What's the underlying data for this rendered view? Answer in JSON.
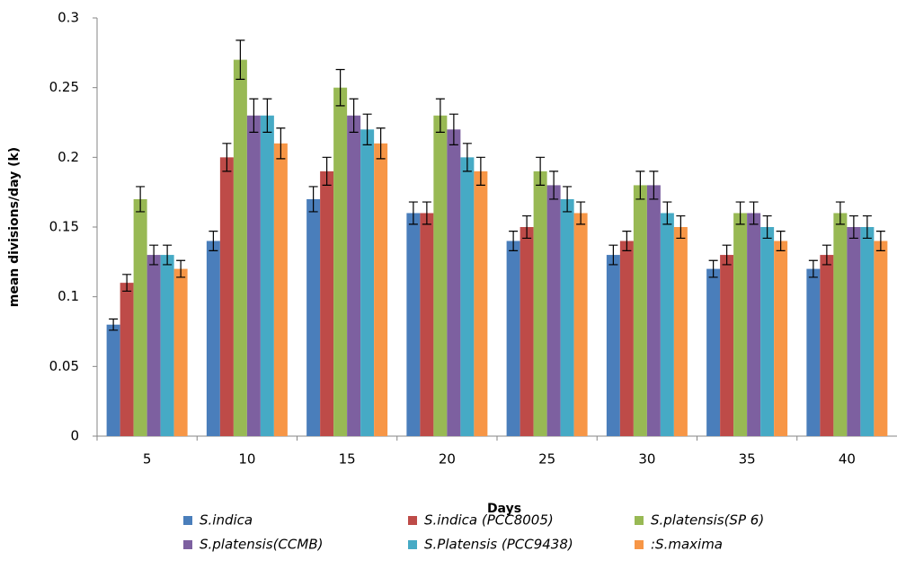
{
  "chart_data": {
    "type": "bar",
    "x_label": "Days",
    "y_label": "mean divisions/day  (k)",
    "categories": [
      "5",
      "10",
      "15",
      "20",
      "25",
      "30",
      "35",
      "40"
    ],
    "ylim": [
      0,
      0.3
    ],
    "yticks": [
      0,
      0.05,
      0.1,
      0.15,
      0.2,
      0.25,
      0.3
    ],
    "grid": false,
    "legend": "bottom",
    "series": [
      {
        "name": "S.indica",
        "color": "#4a7ebb",
        "values": [
          0.08,
          0.14,
          0.17,
          0.16,
          0.14,
          0.13,
          0.12,
          0.12
        ],
        "errors": [
          0.004,
          0.007,
          0.009,
          0.008,
          0.007,
          0.007,
          0.006,
          0.006
        ]
      },
      {
        "name": "S.indica  (PCC8005)",
        "color": "#be4b48",
        "values": [
          0.11,
          0.2,
          0.19,
          0.16,
          0.15,
          0.14,
          0.13,
          0.13
        ],
        "errors": [
          0.006,
          0.01,
          0.01,
          0.008,
          0.008,
          0.007,
          0.007,
          0.007
        ]
      },
      {
        "name": "S.platensis(SP 6)",
        "color": "#98b954",
        "values": [
          0.17,
          0.27,
          0.25,
          0.23,
          0.19,
          0.18,
          0.16,
          0.16
        ],
        "errors": [
          0.009,
          0.014,
          0.013,
          0.012,
          0.01,
          0.01,
          0.008,
          0.008
        ]
      },
      {
        "name": "S.platensis(CCMB)",
        "color": "#7d60a0",
        "values": [
          0.13,
          0.23,
          0.23,
          0.22,
          0.18,
          0.18,
          0.16,
          0.15
        ],
        "errors": [
          0.007,
          0.012,
          0.012,
          0.011,
          0.01,
          0.01,
          0.008,
          0.008
        ]
      },
      {
        "name": "S.Platensis (PCC9438)",
        "color": "#46aac5",
        "values": [
          0.13,
          0.23,
          0.22,
          0.2,
          0.17,
          0.16,
          0.15,
          0.15
        ],
        "errors": [
          0.007,
          0.012,
          0.011,
          0.01,
          0.009,
          0.008,
          0.008,
          0.008
        ]
      },
      {
        "name": ":S.maxima",
        "color": "#f79646",
        "values": [
          0.12,
          0.21,
          0.21,
          0.19,
          0.16,
          0.15,
          0.14,
          0.14
        ],
        "errors": [
          0.006,
          0.011,
          0.011,
          0.01,
          0.008,
          0.008,
          0.007,
          0.007
        ]
      }
    ]
  }
}
